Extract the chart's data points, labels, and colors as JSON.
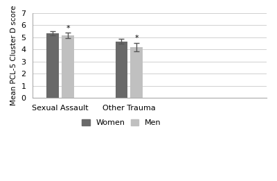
{
  "categories": [
    "Sexual Assault",
    "Other Trauma"
  ],
  "women_means": [
    5.35,
    4.65
  ],
  "men_means": [
    5.15,
    4.2
  ],
  "women_errors": [
    0.18,
    0.2
  ],
  "men_errors": [
    0.22,
    0.35
  ],
  "women_color": "#696969",
  "men_color": "#c0c0c0",
  "ylabel": "Mean PCL-5 Cluster D score",
  "ylim": [
    0,
    7
  ],
  "yticks": [
    0,
    1,
    2,
    3,
    4,
    5,
    6,
    7
  ],
  "legend_labels": [
    "Women",
    "Men"
  ],
  "bar_width": 0.18,
  "asterisk_women_sa": false,
  "asterisk_men_sa": true,
  "asterisk_women_ot": false,
  "asterisk_men_ot": true,
  "background_color": "#ffffff",
  "grid_color": "#d0d0d0"
}
